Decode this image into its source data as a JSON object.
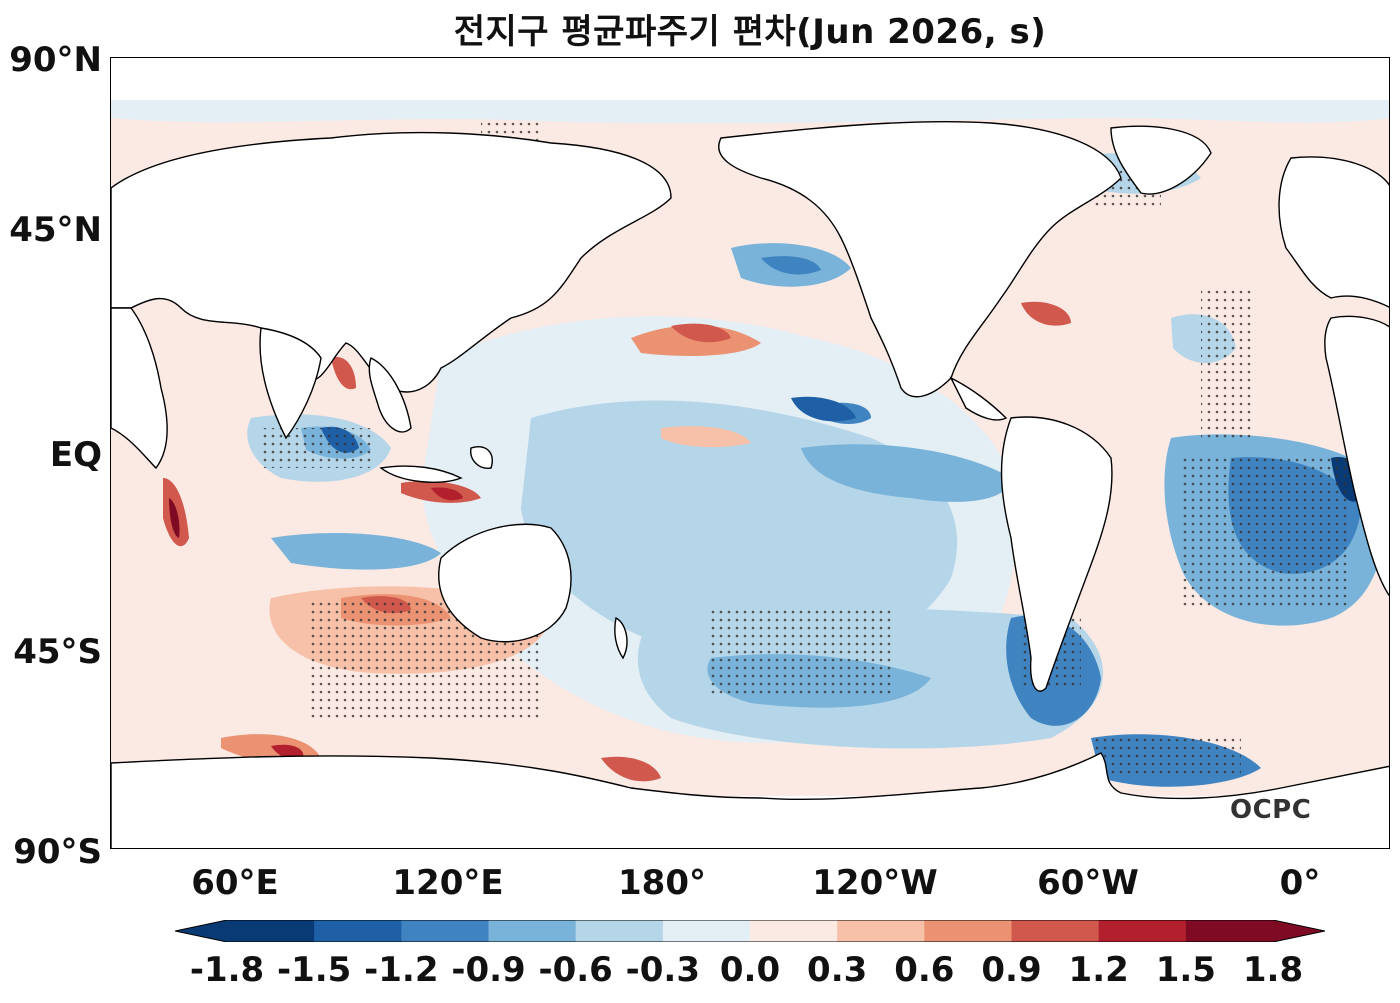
{
  "title": "전지구 평균파주기 편차(Jun 2026, s)",
  "logo_text": "OCPC",
  "lat_labels": [
    "90°N",
    "45°N",
    "EQ",
    "45°S",
    "90°S"
  ],
  "lon_labels": [
    "60°E",
    "120°E",
    "180°",
    "120°W",
    "60°W",
    "0°"
  ],
  "colorbar": {
    "ticks": [
      "-1.8",
      "-1.5",
      "-1.2",
      "-0.9",
      "-0.6",
      "-0.3",
      "0.0",
      "0.3",
      "0.6",
      "0.9",
      "1.2",
      "1.5",
      "1.8"
    ],
    "colors": [
      "#0a3a73",
      "#1f5fa6",
      "#3f83c0",
      "#79b3d9",
      "#b5d5e8",
      "#e3eef5",
      "#fbe9e4",
      "#f6c1a8",
      "#eb9273",
      "#d0584c",
      "#b2202d",
      "#7f0a23"
    ],
    "extend": "both"
  },
  "map": {
    "projection": "equirectangular",
    "central_longitude": "Pacific-centered",
    "stippling": "significance dots"
  }
}
